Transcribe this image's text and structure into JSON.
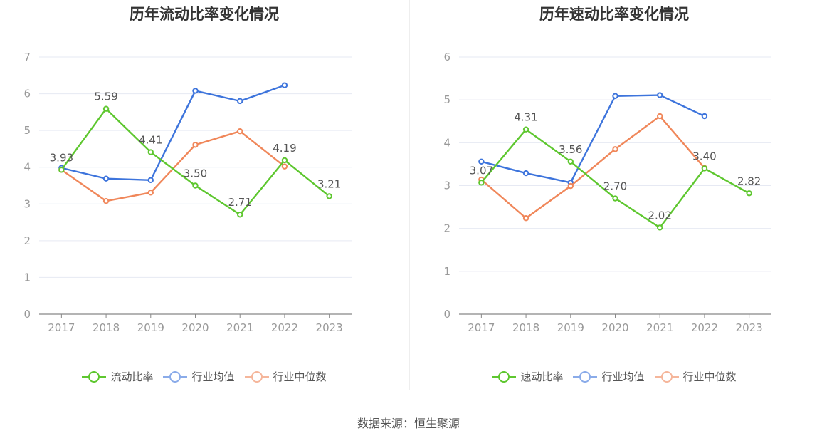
{
  "chart_data": [
    {
      "type": "line",
      "title": "历年流动比率变化情况",
      "categories": [
        "2017",
        "2018",
        "2019",
        "2020",
        "2021",
        "2022",
        "2023"
      ],
      "ylim": [
        0,
        7
      ],
      "yticks": [
        "0",
        "1",
        "2",
        "3",
        "4",
        "5",
        "6",
        "7"
      ],
      "grid": true,
      "legend_position": "bottom",
      "series": [
        {
          "name": "流动比率",
          "color": "#5ec72f",
          "labeled": true,
          "values": [
            3.93,
            5.59,
            4.41,
            3.5,
            2.71,
            4.19,
            3.21
          ],
          "labels": [
            "3.93",
            "5.59",
            "4.41",
            "3.50",
            "2.71",
            "4.19",
            "3.21"
          ]
        },
        {
          "name": "行业均值",
          "color": "#3d74dc",
          "labeled": false,
          "values": [
            3.98,
            3.69,
            3.65,
            6.08,
            5.8,
            6.23,
            null
          ]
        },
        {
          "name": "行业中位数",
          "color": "#f0875a",
          "labeled": false,
          "values": [
            3.93,
            3.08,
            3.31,
            4.61,
            4.98,
            4.02,
            null
          ]
        }
      ]
    },
    {
      "type": "line",
      "title": "历年速动比率变化情况",
      "categories": [
        "2017",
        "2018",
        "2019",
        "2020",
        "2021",
        "2022",
        "2023"
      ],
      "ylim": [
        0,
        6
      ],
      "yticks": [
        "0",
        "1",
        "2",
        "3",
        "4",
        "5",
        "6"
      ],
      "grid": true,
      "legend_position": "bottom",
      "series": [
        {
          "name": "速动比率",
          "color": "#5ec72f",
          "labeled": true,
          "values": [
            3.07,
            4.31,
            3.56,
            2.7,
            2.02,
            3.4,
            2.82
          ],
          "labels": [
            "3.07",
            "4.31",
            "3.56",
            "2.70",
            "2.02",
            "3.40",
            "2.82"
          ]
        },
        {
          "name": "行业均值",
          "color": "#3d74dc",
          "labeled": false,
          "values": [
            3.56,
            3.29,
            3.07,
            5.09,
            5.11,
            4.62,
            null
          ]
        },
        {
          "name": "行业中位数",
          "color": "#f0875a",
          "labeled": false,
          "values": [
            3.14,
            2.24,
            2.99,
            3.85,
            4.62,
            3.41,
            null
          ]
        }
      ]
    }
  ],
  "source": "数据来源：恒生聚源"
}
